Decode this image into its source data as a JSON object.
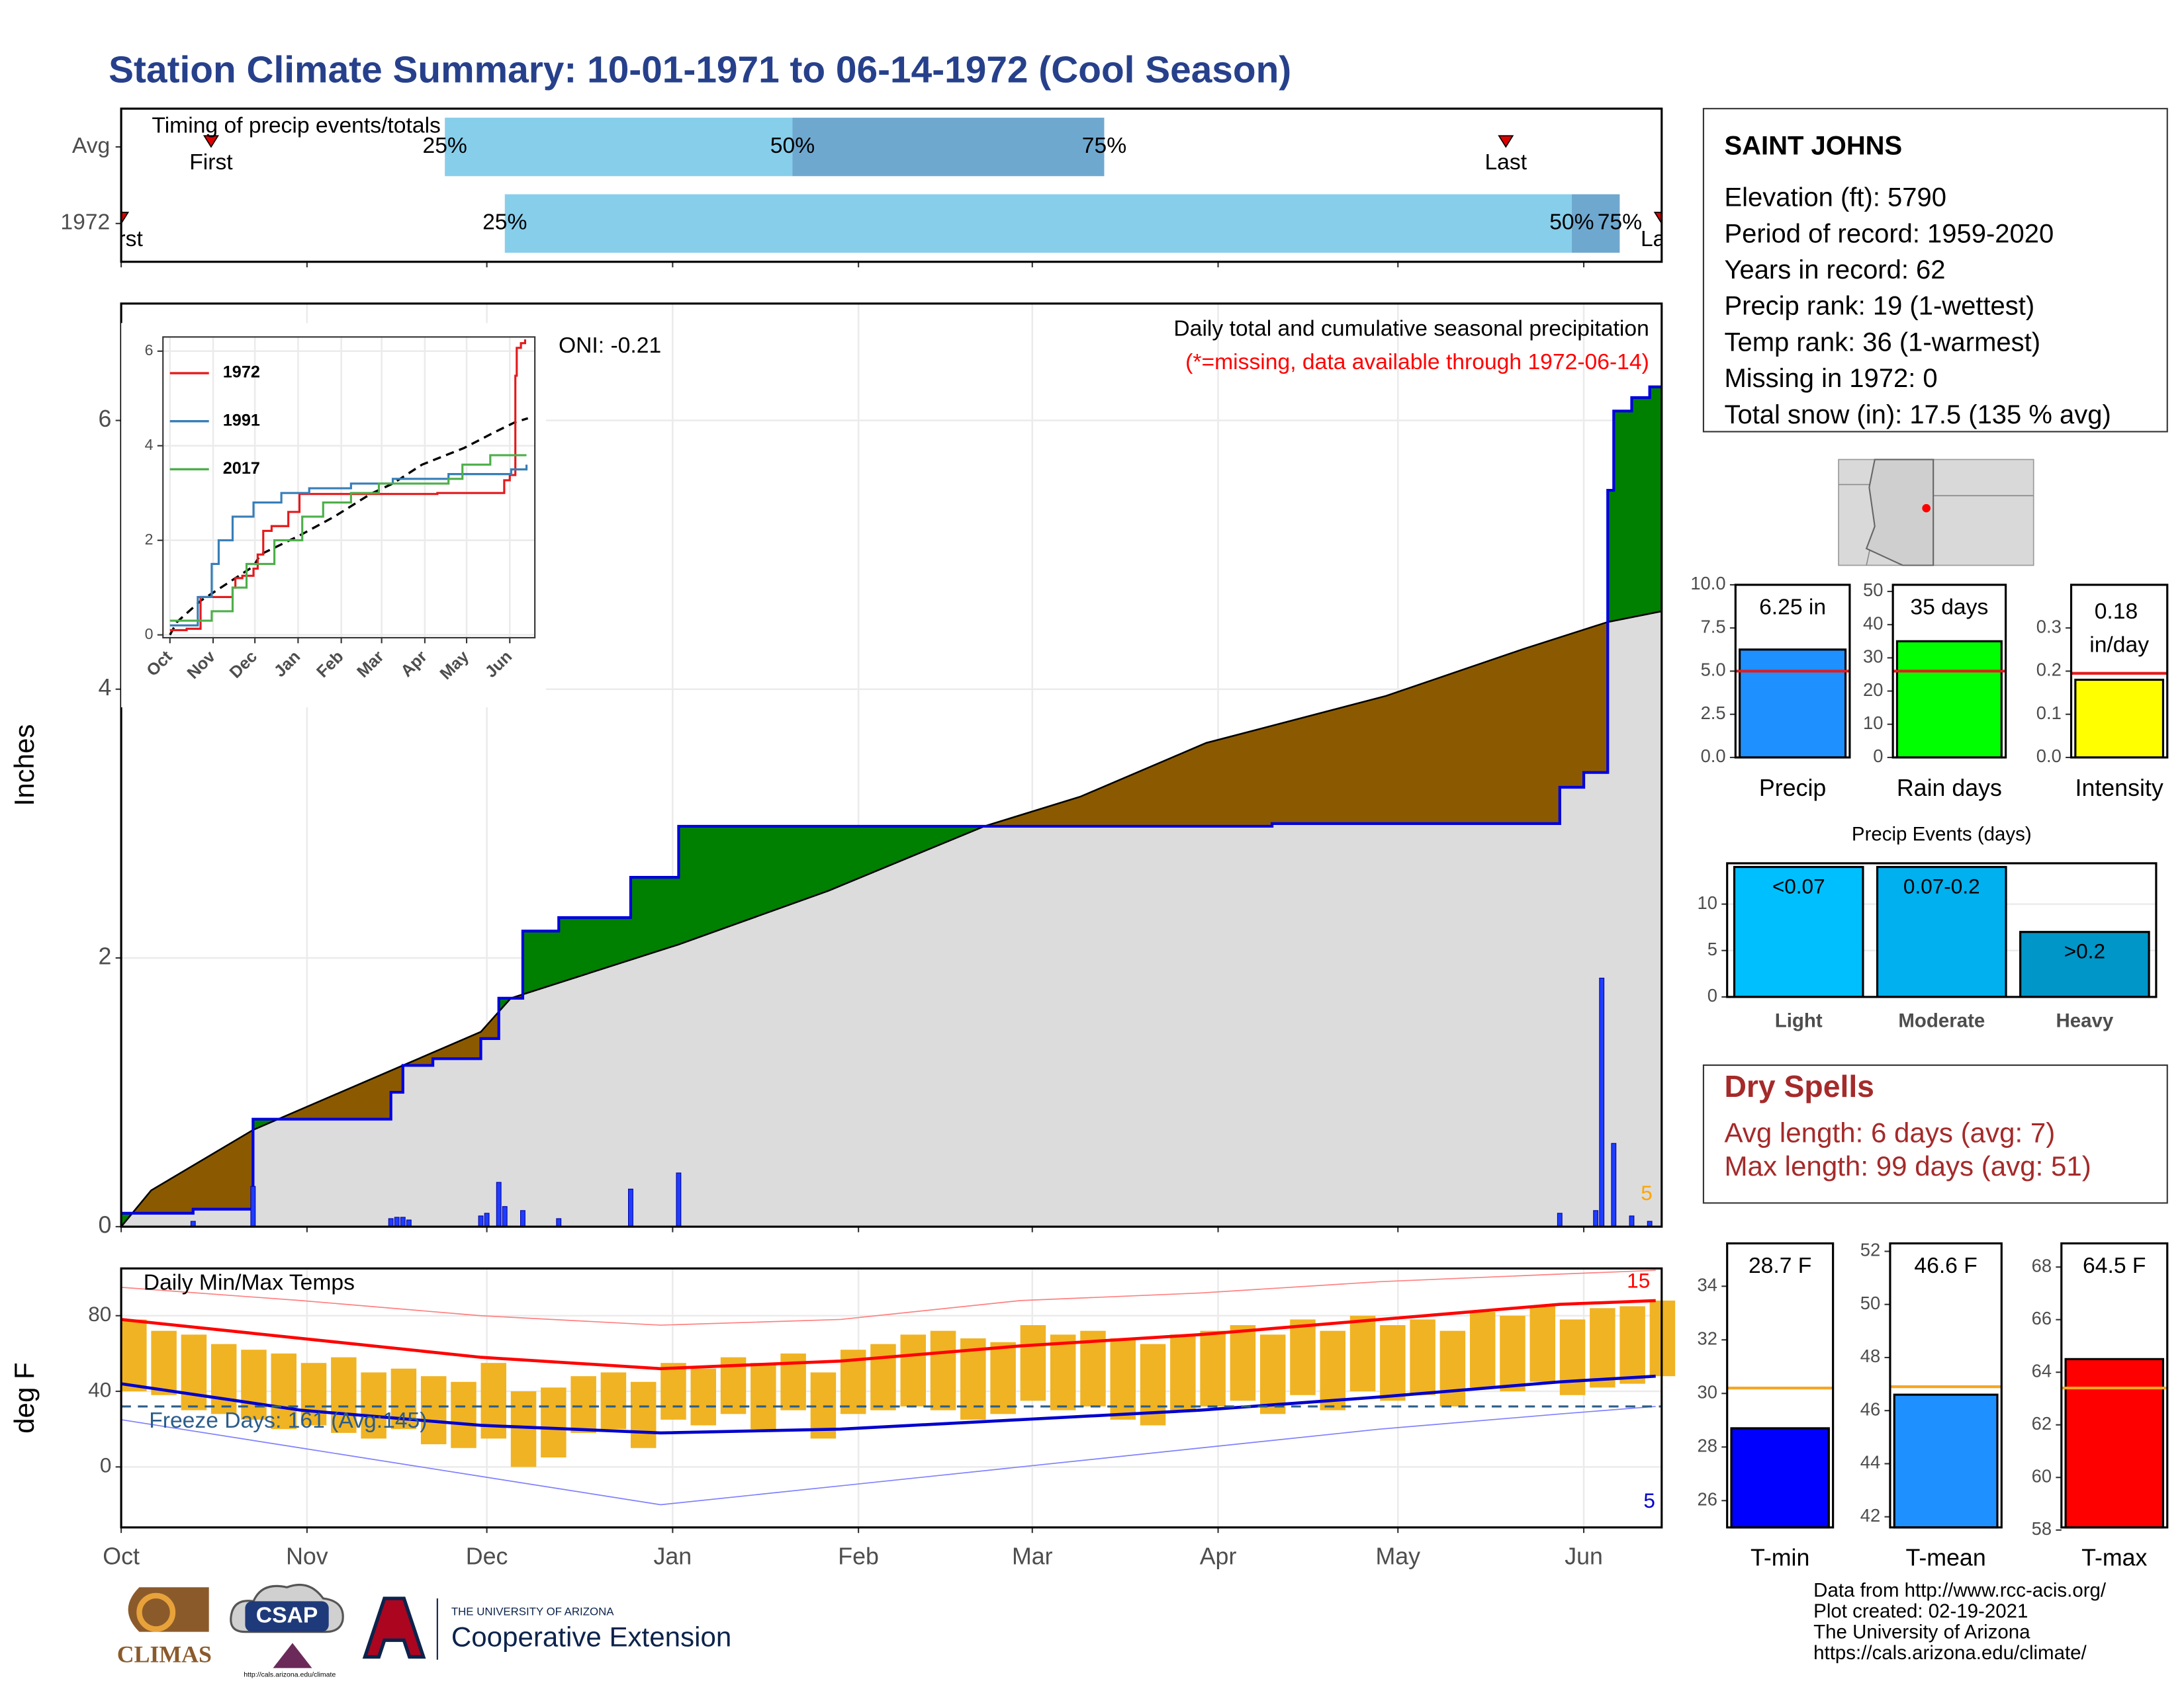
{
  "title": "Station Climate Summary: 10-01-1971 to 06-14-1972 (Cool Season)",
  "station": {
    "name": "SAINT JOHNS",
    "lines": [
      "Elevation (ft): 5790",
      "Period of record: 1959-2020",
      "Years in record: 62",
      "Precip rank: 19 (1-wettest)",
      "Temp rank: 36 (1-warmest)",
      "Missing in 1972: 0",
      "Total snow (in): 17.5 (135 % avg)"
    ]
  },
  "dry_spells": {
    "title": "Dry Spells",
    "lines": [
      "Avg length: 6 days (avg: 7)",
      "Max length: 99 days (avg: 51)"
    ]
  },
  "footer": [
    "Data from http://www.rcc-acis.org/",
    "Plot created: 02-19-2021",
    "The University of Arizona",
    "https://cals.arizona.edu/climate/"
  ],
  "logos": {
    "climas": "CLIMAS",
    "csap": "CSAP",
    "csap_url": "http://cals.arizona.edu/climate",
    "ua": "THE UNIVERSITY OF ARIZONA",
    "extension": "Cooperative Extension"
  },
  "chart_data": [
    {
      "type": "timeline",
      "title": "Timing of precip events/totals",
      "labels": {
        "first": "First",
        "q25": "25%",
        "q50": "50%",
        "q75": "75%",
        "last": "Last"
      },
      "rows": [
        {
          "name": "Avg",
          "first": 15,
          "q25": 54,
          "q50": 112,
          "q75": 164,
          "last": 231
        },
        {
          "name": "1972",
          "first": 0,
          "q25": 64,
          "q50": 242,
          "q75": 250,
          "last": 257
        }
      ],
      "colors": [
        "#87ceeb",
        "#6fa8cf"
      ],
      "xlim": [
        0,
        257
      ],
      "xticks": [
        0,
        31,
        61,
        92,
        123,
        152,
        183,
        213,
        244
      ]
    },
    {
      "type": "step",
      "title": "Daily total and cumulative seasonal precipitation",
      "subtitle": "(*=missing, data available through 1972-06-14)",
      "oni": "ONI: -0.21",
      "annotation": "5",
      "ylabel": "Inches",
      "cumulative": {
        "color": "#0000e0",
        "x": [
          0,
          12,
          22,
          45,
          47,
          52,
          60,
          63,
          67,
          73,
          85,
          93,
          192,
          240,
          244,
          248,
          249,
          252,
          255
        ],
        "values": [
          0.1,
          0.13,
          0.8,
          1.0,
          1.2,
          1.25,
          1.4,
          1.7,
          2.2,
          2.3,
          2.6,
          2.98,
          3.0,
          3.27,
          3.38,
          5.48,
          6.07,
          6.17,
          6.25
        ]
      },
      "average": {
        "color": "#dcdcdc",
        "x": [
          0,
          5,
          22,
          47,
          60,
          65,
          93,
          118,
          144,
          160,
          181,
          211,
          234,
          248,
          257
        ],
        "values": [
          0,
          0.27,
          0.72,
          1.2,
          1.45,
          1.7,
          2.1,
          2.5,
          2.98,
          3.2,
          3.6,
          3.95,
          4.3,
          4.5,
          4.58
        ]
      },
      "above_color": "#008000",
      "below_color": "#8b5a00",
      "daily": {
        "color": "#1f3dff",
        "x": [
          12,
          22,
          45,
          46,
          47,
          48,
          60,
          61,
          63,
          64,
          67,
          73,
          85,
          93,
          240,
          246,
          247,
          249,
          252,
          255
        ],
        "values": [
          0.04,
          0.3,
          0.06,
          0.07,
          0.07,
          0.05,
          0.08,
          0.1,
          0.33,
          0.15,
          0.12,
          0.06,
          0.28,
          0.4,
          0.1,
          0.12,
          1.85,
          0.62,
          0.08,
          0.04
        ]
      },
      "xlim": [
        0,
        257
      ],
      "xticks": [
        0,
        31,
        61,
        92,
        123,
        152,
        183,
        213,
        244
      ],
      "ylim": [
        0,
        6.87
      ],
      "yticks": [
        0,
        2,
        4,
        6
      ],
      "grid": true
    },
    {
      "type": "line",
      "series": [
        {
          "name": "1972",
          "color": "#e41a1c",
          "x": [
            0,
            12,
            22,
            45,
            47,
            52,
            60,
            63,
            67,
            73,
            85,
            93,
            192,
            240,
            244,
            248,
            249,
            252,
            255
          ],
          "values": [
            0.1,
            0.13,
            0.8,
            1.0,
            1.2,
            1.25,
            1.4,
            1.7,
            2.2,
            2.3,
            2.6,
            2.98,
            3.0,
            3.27,
            3.38,
            5.48,
            6.07,
            6.17,
            6.25
          ]
        },
        {
          "name": "1991",
          "color": "#377eb8",
          "x": [
            0,
            20,
            30,
            35,
            45,
            60,
            80,
            100,
            130,
            160,
            200,
            245,
            256
          ],
          "values": [
            0.2,
            0.8,
            1.5,
            2.0,
            2.5,
            2.8,
            3.0,
            3.1,
            3.2,
            3.3,
            3.4,
            3.5,
            3.6
          ]
        },
        {
          "name": "2017",
          "color": "#4daf4a",
          "x": [
            0,
            30,
            45,
            55,
            75,
            95,
            110,
            130,
            150,
            200,
            210,
            230,
            256
          ],
          "values": [
            0.3,
            0.5,
            1.0,
            1.5,
            2.0,
            2.5,
            2.8,
            3.0,
            3.2,
            3.3,
            3.6,
            3.8,
            3.8
          ]
        }
      ],
      "reference": {
        "color": "#000000",
        "x": [
          0,
          5,
          22,
          47,
          60,
          65,
          93,
          118,
          144,
          160,
          181,
          211,
          234,
          248,
          257
        ],
        "values": [
          0,
          0.27,
          0.72,
          1.2,
          1.45,
          1.7,
          2.1,
          2.5,
          2.98,
          3.2,
          3.6,
          3.95,
          4.3,
          4.5,
          4.58
        ]
      },
      "xlim": [
        -5,
        262
      ],
      "xticks": [
        {
          "value": 0,
          "label": "Oct"
        },
        {
          "value": 31,
          "label": "Nov"
        },
        {
          "value": 61,
          "label": "Dec"
        },
        {
          "value": 92,
          "label": "Jan"
        },
        {
          "value": 123,
          "label": "Feb"
        },
        {
          "value": 152,
          "label": "Mar"
        },
        {
          "value": 183,
          "label": "Apr"
        },
        {
          "value": 213,
          "label": "May"
        },
        {
          "value": 244,
          "label": "Jun"
        }
      ],
      "ylim": [
        -0.06,
        6.3
      ],
      "yticks": [
        0,
        2,
        4,
        6
      ],
      "grid": true
    },
    {
      "type": "range_bar",
      "title": "Daily Min/Max Temps",
      "ylabel": "deg F",
      "freeze_line": 32,
      "freeze_label": "Freeze Days: 161 (Avg:145)",
      "high_count": "15",
      "low_count": "5",
      "bar_color": "#f0b323",
      "x": [
        0,
        5,
        10,
        15,
        20,
        25,
        30,
        35,
        40,
        45,
        50,
        55,
        60,
        65,
        70,
        75,
        80,
        85,
        90,
        95,
        100,
        105,
        110,
        115,
        120,
        125,
        130,
        135,
        140,
        145,
        150,
        155,
        160,
        165,
        170,
        175,
        180,
        185,
        190,
        195,
        200,
        205,
        210,
        215,
        220,
        225,
        230,
        235,
        240,
        245,
        250,
        255
      ],
      "max": [
        78,
        72,
        70,
        65,
        62,
        60,
        55,
        58,
        50,
        52,
        48,
        45,
        55,
        40,
        42,
        48,
        50,
        45,
        55,
        52,
        58,
        55,
        60,
        50,
        62,
        65,
        70,
        72,
        68,
        66,
        75,
        70,
        72,
        68,
        65,
        70,
        72,
        75,
        70,
        78,
        72,
        80,
        75,
        78,
        72,
        82,
        80,
        85,
        78,
        84,
        85,
        88
      ],
      "min": [
        40,
        38,
        30,
        28,
        25,
        20,
        22,
        18,
        15,
        20,
        12,
        10,
        15,
        0,
        5,
        18,
        20,
        10,
        25,
        22,
        28,
        20,
        30,
        15,
        28,
        30,
        32,
        30,
        25,
        28,
        35,
        30,
        32,
        25,
        22,
        30,
        32,
        35,
        28,
        38,
        30,
        40,
        35,
        38,
        32,
        42,
        40,
        45,
        38,
        42,
        44,
        48
      ],
      "lines": [
        {
          "color": "#ff8080",
          "width": 0.8,
          "x": [
            0,
            30,
            60,
            90,
            120,
            150,
            180,
            210,
            240,
            256
          ],
          "values": [
            95,
            88,
            80,
            75,
            78,
            88,
            92,
            98,
            102,
            104
          ]
        },
        {
          "color": "#8080ff",
          "width": 0.8,
          "x": [
            0,
            30,
            60,
            90,
            120,
            150,
            180,
            210,
            240,
            256
          ],
          "values": [
            25,
            10,
            -5,
            -20,
            -10,
            0,
            10,
            20,
            28,
            32
          ]
        },
        {
          "color": "#ff0000",
          "width": 2.2,
          "x": [
            0,
            30,
            60,
            90,
            120,
            150,
            180,
            210,
            240,
            256
          ],
          "values": [
            78,
            68,
            58,
            52,
            56,
            64,
            70,
            78,
            86,
            88
          ]
        },
        {
          "color": "#0000cd",
          "width": 2.2,
          "x": [
            0,
            30,
            60,
            90,
            120,
            150,
            180,
            210,
            240,
            256
          ],
          "values": [
            44,
            30,
            22,
            18,
            20,
            25,
            30,
            37,
            45,
            48
          ]
        }
      ],
      "xlim": [
        0,
        257
      ],
      "xticks": [
        {
          "value": 0,
          "label": "Oct"
        },
        {
          "value": 31,
          "label": "Nov"
        },
        {
          "value": 61,
          "label": "Dec"
        },
        {
          "value": 92,
          "label": "Jan"
        },
        {
          "value": 123,
          "label": "Feb"
        },
        {
          "value": 152,
          "label": "Mar"
        },
        {
          "value": 183,
          "label": "Apr"
        },
        {
          "value": 213,
          "label": "May"
        },
        {
          "value": 244,
          "label": "Jun"
        }
      ],
      "ylim": [
        -32,
        105
      ],
      "yticks": [
        0,
        40,
        80
      ],
      "grid": true
    },
    {
      "type": "bar",
      "categories": [
        "Precip"
      ],
      "values": [
        6.25
      ],
      "value_labels": [
        "6.25 in"
      ],
      "color": "#1e90ff",
      "avg": 5.0,
      "avg_color": "#e41a1c",
      "ylim": [
        0,
        10
      ],
      "yticks": [
        {
          "value": 0,
          "label": "0.0"
        },
        {
          "value": 2.5,
          "label": "2.5"
        },
        {
          "value": 5,
          "label": "5.0"
        },
        {
          "value": 7.5,
          "label": "7.5"
        },
        {
          "value": 10,
          "label": "10.0"
        }
      ]
    },
    {
      "type": "bar",
      "categories": [
        "Rain days"
      ],
      "values": [
        35
      ],
      "value_labels": [
        "35 days"
      ],
      "color": "#00ff00",
      "avg": 26,
      "avg_color": "#e41a1c",
      "ylim": [
        0,
        52
      ],
      "yticks": [
        0,
        10,
        20,
        30,
        40,
        50
      ]
    },
    {
      "type": "bar",
      "categories": [
        "Intensity"
      ],
      "values": [
        0.18
      ],
      "value_labels": [
        "0.18 in/day"
      ],
      "color": "#ffff00",
      "avg": 0.195,
      "avg_color": "#e41a1c",
      "ylim": [
        0,
        0.4
      ],
      "yticks": [
        {
          "value": 0,
          "label": "0.0"
        },
        0.1,
        0.2,
        0.3
      ]
    },
    {
      "type": "bar",
      "title": "Precip Events (days)",
      "categories": [
        "Light",
        "Moderate",
        "Heavy"
      ],
      "values": [
        14,
        14,
        7
      ],
      "bar_labels": [
        "<0.07",
        "0.07-0.2",
        ">0.2"
      ],
      "colors": [
        "#00bfff",
        "#00b0ef",
        "#0096c8"
      ],
      "ylim": [
        0,
        14.4
      ],
      "yticks": [
        0,
        5,
        10
      ],
      "grid": true
    },
    {
      "type": "bar",
      "categories": [
        "T-min"
      ],
      "values": [
        28.7
      ],
      "value_labels": [
        "28.7 F"
      ],
      "color": "#0000ff",
      "avg": 30.2,
      "avg_color": "#f5a623",
      "ylim": [
        25,
        35.6
      ],
      "yticks": [
        26,
        28,
        30,
        32,
        34
      ]
    },
    {
      "type": "bar",
      "categories": [
        "T-mean"
      ],
      "values": [
        46.6
      ],
      "value_labels": [
        "46.6 F"
      ],
      "color": "#1e90ff",
      "avg": 46.9,
      "avg_color": "#f5a623",
      "ylim": [
        41.6,
        52.3
      ],
      "yticks": [
        42,
        44,
        46,
        48,
        50,
        52
      ]
    },
    {
      "type": "bar",
      "categories": [
        "T-max"
      ],
      "values": [
        64.5
      ],
      "value_labels": [
        "64.5 F"
      ],
      "color": "#ff0000",
      "avg": 63.4,
      "avg_color": "#f5a623",
      "ylim": [
        58.1,
        68.9
      ],
      "yticks": [
        58,
        60,
        62,
        64,
        66,
        68
      ]
    }
  ]
}
